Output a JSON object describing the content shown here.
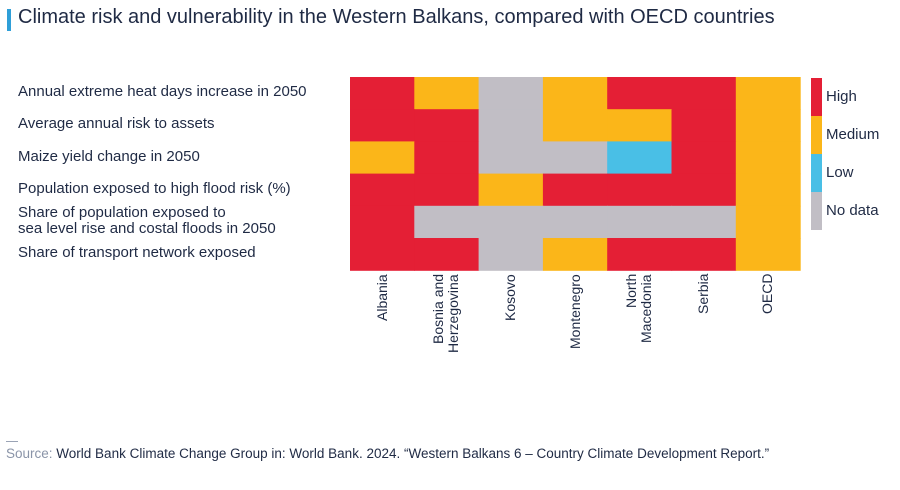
{
  "title": "Climate risk and vulnerability in the Western Balkans, compared with OECD countries",
  "colors": {
    "High": "#e41f35",
    "Medium": "#fbb619",
    "Low": "#49bfe6",
    "No data": "#c1bec5"
  },
  "chart_data": {
    "type": "heatmap",
    "rows": [
      "Annual extreme heat days increase in 2050",
      "Average annual risk to assets",
      "Maize yield change in 2050",
      "Population exposed to high flood risk (%)",
      "Share of population exposed to sea level rise and costal floods in 2050",
      "Share of transport network exposed"
    ],
    "columns": [
      "Albania",
      "Bosnia and Herzegovina",
      "Kosovo",
      "Montenegro",
      "North Macedonia",
      "Serbia",
      "OECD"
    ],
    "values": [
      [
        "High",
        "Medium",
        "No data",
        "Medium",
        "High",
        "High",
        "Medium"
      ],
      [
        "High",
        "High",
        "No data",
        "Medium",
        "Medium",
        "High",
        "Medium"
      ],
      [
        "Medium",
        "High",
        "No data",
        "No data",
        "Low",
        "High",
        "Medium"
      ],
      [
        "High",
        "High",
        "Medium",
        "High",
        "High",
        "High",
        "Medium"
      ],
      [
        "High",
        "No data",
        "No data",
        "No data",
        "No data",
        "No data",
        "Medium"
      ],
      [
        "High",
        "High",
        "No data",
        "Medium",
        "High",
        "High",
        "Medium"
      ]
    ],
    "legend": [
      "High",
      "Medium",
      "Low",
      "No data"
    ],
    "legend_position": "right"
  },
  "labels": {
    "rows": [
      [
        "Annual extreme heat days increase in 2050"
      ],
      [
        "Average annual risk to assets"
      ],
      [
        "Maize yield change in 2050"
      ],
      [
        "Population exposed to high flood risk (%)"
      ],
      [
        "Share of population exposed to",
        "sea level rise and costal floods in 2050"
      ],
      [
        "Share of transport network exposed"
      ]
    ],
    "columns": [
      [
        "Albania"
      ],
      [
        "Bosnia and",
        "Herzegovina"
      ],
      [
        "Kosovo"
      ],
      [
        "Montenegro"
      ],
      [
        "North",
        "Macedonia"
      ],
      [
        "Serbia"
      ],
      [
        "OECD"
      ]
    ]
  },
  "source": {
    "prefix": "Source:",
    "text": "World Bank Climate Change Group in: World Bank. 2024. “Western Balkans 6 – Country Climate Development Report.”"
  }
}
